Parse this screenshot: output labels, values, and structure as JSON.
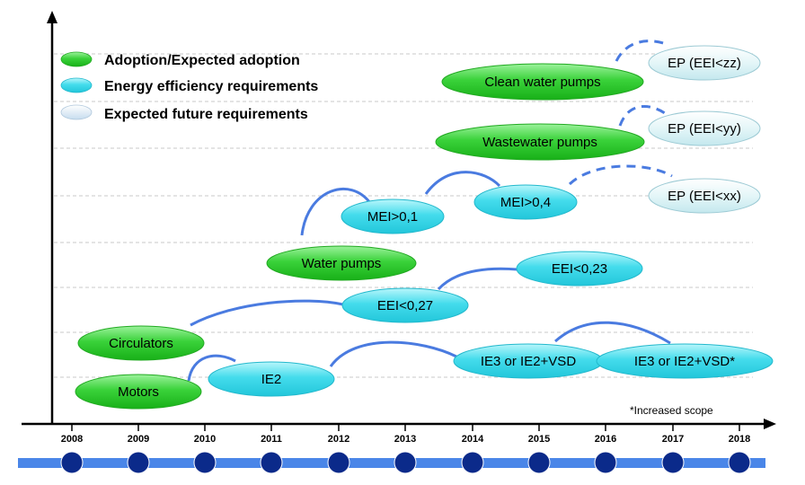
{
  "legend": {
    "adoption": "Adoption/Expected adoption",
    "efficiency": "Energy efficiency requirements",
    "future": "Expected future requirements"
  },
  "colors": {
    "adoption": "#33cc33",
    "efficiency": "#33d6e6",
    "future": "#d8f0f4",
    "connector": "#4a7be0",
    "timeline_bar": "#4a86e8",
    "year_dot": "#0b2a8a"
  },
  "years": [
    "2008",
    "2009",
    "2010",
    "2011",
    "2012",
    "2013",
    "2014",
    "2015",
    "2016",
    "2017",
    "2018"
  ],
  "nodes": {
    "clean_water_pumps": "Clean water pumps",
    "ep_zz": "EP (EEI<zz)",
    "wastewater_pumps": "Wastewater pumps",
    "ep_yy": "EP (EEI<yy)",
    "mei_01": "MEI>0,1",
    "mei_04": "MEI>0,4",
    "ep_xx": "EP (EEI<xx)",
    "water_pumps": "Water pumps",
    "eei_023": "EEI<0,23",
    "eei_027": "EEI<0,27",
    "circulators": "Circulators",
    "ie3_vsd": "IE3 or IE2+VSD",
    "ie3_vsd_scope": "IE3 or IE2+VSD*",
    "motors": "Motors",
    "ie2": "IE2"
  },
  "footnote": "*Increased scope"
}
